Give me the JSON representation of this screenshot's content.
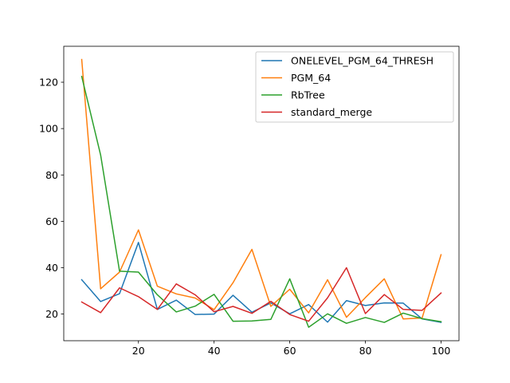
{
  "chart_data": {
    "type": "line",
    "title": "",
    "xlabel": "",
    "ylabel": "",
    "xlim": [
      0.25,
      104.75
    ],
    "ylim": [
      8.5,
      135.5
    ],
    "xticks": [
      20,
      40,
      60,
      80,
      100
    ],
    "yticks": [
      20,
      40,
      60,
      80,
      100,
      120
    ],
    "grid": false,
    "legend_position": "top-right",
    "x": [
      5,
      10,
      15,
      20,
      25,
      30,
      35,
      40,
      45,
      50,
      55,
      60,
      65,
      70,
      75,
      80,
      85,
      90,
      95,
      100
    ],
    "series": [
      {
        "name": "ONELEVEL_PGM_64_THRESH",
        "color": "#1f77b4",
        "values": [
          34.8,
          25.4,
          28.8,
          50.9,
          22.0,
          26.0,
          19.8,
          20.0,
          28.1,
          20.8,
          24.8,
          20.1,
          24.1,
          16.5,
          25.8,
          23.7,
          24.8,
          24.7,
          17.9,
          16.4
        ]
      },
      {
        "name": "PGM_64",
        "color": "#ff7f0e",
        "values": [
          129.8,
          30.9,
          38.1,
          56.3,
          32.0,
          28.7,
          26.9,
          21.9,
          33.5,
          47.9,
          23.3,
          30.7,
          20.5,
          34.8,
          18.6,
          27.1,
          35.2,
          17.9,
          18.3,
          45.6
        ]
      },
      {
        "name": "RbTree",
        "color": "#2ca02c",
        "values": [
          122.5,
          88.6,
          38.5,
          38.1,
          28.3,
          20.9,
          23.4,
          28.5,
          16.9,
          17.0,
          17.7,
          35.2,
          14.3,
          20.1,
          16.0,
          18.5,
          16.4,
          20.4,
          18.0,
          16.7
        ]
      },
      {
        "name": "standard_merge",
        "color": "#d62728",
        "values": [
          25.2,
          20.6,
          31.3,
          27.5,
          22.0,
          33.0,
          28.3,
          21.0,
          23.3,
          20.3,
          25.5,
          19.8,
          16.9,
          27.0,
          40.0,
          20.2,
          28.4,
          22.0,
          21.6,
          29.1
        ]
      }
    ]
  }
}
